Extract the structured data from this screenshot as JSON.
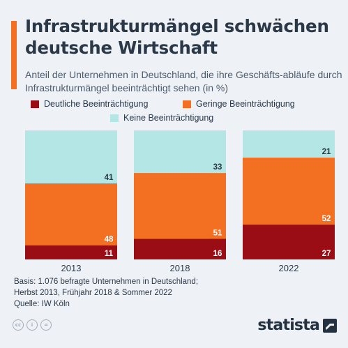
{
  "title": "Infrastrukturmängel schwächen deutsche Wirtschaft",
  "subtitle": "Anteil der Unternehmen in Deutschland, die ihre Geschäfts-abläufe durch Infrastrukturmängel beeinträchtigt sehen (in %)",
  "colors": {
    "accent": "#f36f21",
    "deutliche": "#9b0d14",
    "geringe": "#f36f21",
    "keine": "#b5e6e6"
  },
  "chart_data": {
    "type": "bar",
    "stacked": true,
    "categories": [
      "2013",
      "2018",
      "2022"
    ],
    "series": [
      {
        "name": "Deutliche Beeinträchtigung",
        "values": [
          11,
          16,
          27
        ],
        "color": "#9b0d14"
      },
      {
        "name": "Geringe Beeinträchtigung",
        "values": [
          48,
          51,
          52
        ],
        "color": "#f36f21"
      },
      {
        "name": "Keine Beeinträchtigung",
        "values": [
          41,
          33,
          21
        ],
        "color": "#b5e6e6"
      }
    ],
    "ylim": [
      0,
      100
    ],
    "grid": false,
    "legend": "top"
  },
  "source": {
    "lines": [
      "Basis: 1.076 befragte Unternehmen in Deutschland;",
      "Herbst 2013, Frühjahr 2018 & Sommer 2022",
      "Quelle: IW Köln"
    ]
  },
  "footer": {
    "license_icons": [
      "cc-icon",
      "by-icon",
      "nd-icon"
    ],
    "license_glyphs": [
      "cc",
      "i",
      "="
    ],
    "brand": "statista"
  }
}
